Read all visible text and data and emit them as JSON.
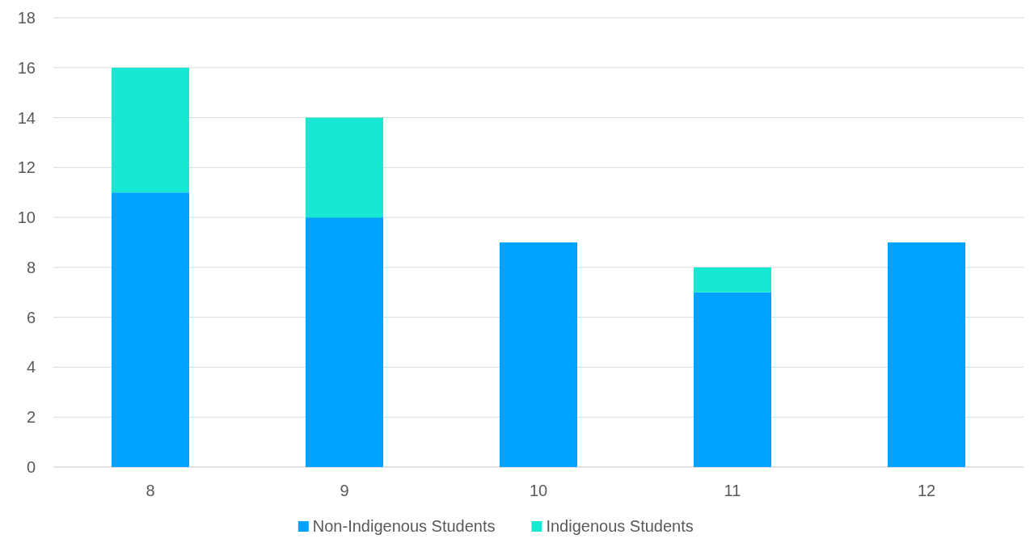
{
  "chart_data": {
    "type": "bar",
    "stacked": true,
    "categories": [
      "8",
      "9",
      "10",
      "11",
      "12"
    ],
    "series": [
      {
        "name": "Non-Indigenous Students",
        "color": "#00a2ff",
        "values": [
          11,
          10,
          9,
          7,
          9
        ]
      },
      {
        "name": "Indigenous Students",
        "color": "#17e8d2",
        "values": [
          5,
          4,
          null,
          1,
          null
        ]
      }
    ],
    "ylim": [
      0,
      18
    ],
    "yticks": [
      0,
      2,
      4,
      6,
      8,
      10,
      12,
      14,
      16,
      18
    ],
    "grid": "y",
    "legend": "bottom"
  }
}
